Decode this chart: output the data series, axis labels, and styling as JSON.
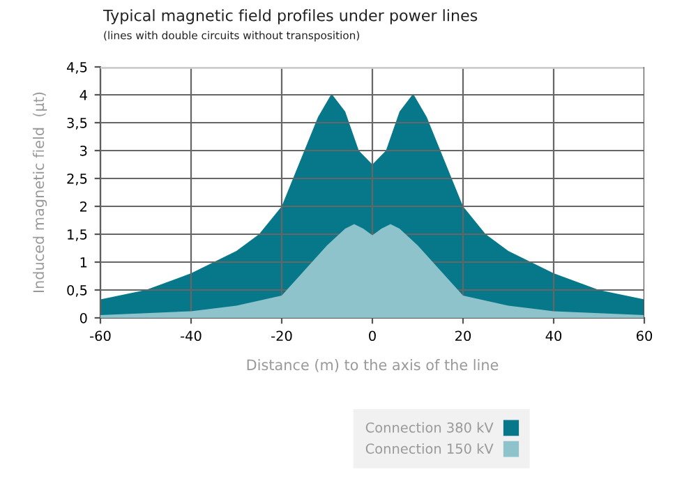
{
  "chart_data": {
    "type": "area",
    "title": "Typical magnetic field profiles under power lines",
    "subtitle": "(lines with double circuits without transposition)",
    "xlabel": "Distance (m) to the axis of the line",
    "ylabel": "Induced magnetic field  (μt)",
    "xlim": [
      -60,
      60
    ],
    "xticks": [
      -60,
      -40,
      -20,
      0,
      20,
      40,
      60
    ],
    "ylim": [
      0,
      4.5
    ],
    "yticks": [
      0,
      {
        "value": 0.5,
        "label": "0,5"
      },
      1,
      {
        "value": 1.5,
        "label": "1,5"
      },
      2,
      {
        "value": 2.5,
        "label": "2,5"
      },
      3,
      {
        "value": 3.5,
        "label": "3,5"
      },
      4,
      {
        "value": 4.5,
        "label": "4,5"
      }
    ],
    "grid": true,
    "legend": "bottom right",
    "series": [
      {
        "name": "Connection 380 kV",
        "color": "#06788a",
        "x": [
          -60,
          -50,
          -40,
          -30,
          -25,
          -20,
          -15,
          -12,
          -9,
          -6,
          -3,
          0,
          3,
          6,
          9,
          12,
          15,
          20,
          25,
          30,
          40,
          50,
          60
        ],
        "values": [
          0.33,
          0.5,
          0.8,
          1.2,
          1.5,
          2.0,
          3.0,
          3.6,
          4.02,
          3.7,
          3.0,
          2.75,
          3.0,
          3.7,
          4.02,
          3.6,
          3.0,
          2.0,
          1.5,
          1.2,
          0.8,
          0.5,
          0.33
        ]
      },
      {
        "name": "Connection 150 kV",
        "color": "#8fc3cb",
        "x": [
          -60,
          -40,
          -30,
          -20,
          -15,
          -10,
          -6,
          -4,
          -2,
          0,
          2,
          4,
          6,
          10,
          15,
          20,
          30,
          40,
          60
        ],
        "values": [
          0.05,
          0.12,
          0.22,
          0.4,
          0.85,
          1.3,
          1.6,
          1.68,
          1.6,
          1.48,
          1.6,
          1.68,
          1.6,
          1.3,
          0.85,
          0.4,
          0.22,
          0.12,
          0.05
        ]
      }
    ]
  }
}
